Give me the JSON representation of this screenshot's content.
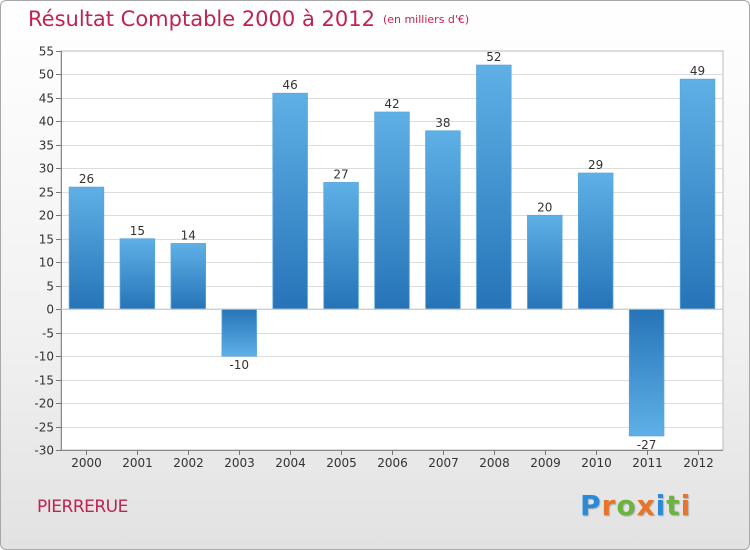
{
  "title": "Résultat Comptable 2000 à 2012",
  "subtitle": "(en milliers d'€)",
  "commune": "PIERRERUE",
  "logo": {
    "letters": [
      "P",
      "r",
      "o",
      "x",
      "i",
      "t",
      "i"
    ],
    "colors": [
      "#2b8ad6",
      "#e8742a",
      "#6cb33f",
      "#e8742a",
      "#2b8ad6",
      "#6cb33f",
      "#e8742a"
    ]
  },
  "colors": {
    "bar_top": "#5fb0e6",
    "bar_bottom": "#2674b8",
    "title": "#c0234f"
  },
  "chart_data": {
    "type": "bar",
    "title": "Résultat Comptable 2000 à 2012",
    "subtitle": "(en milliers d'€)",
    "xlabel": "",
    "ylabel": "",
    "categories": [
      "2000",
      "2001",
      "2002",
      "2003",
      "2004",
      "2005",
      "2006",
      "2007",
      "2008",
      "2009",
      "2010",
      "2011",
      "2012"
    ],
    "values": [
      26,
      15,
      14,
      -10,
      46,
      27,
      42,
      38,
      52,
      20,
      29,
      -27,
      49
    ],
    "labels": [
      "26",
      "15",
      "14",
      "-10",
      "46",
      "27",
      "42",
      "38",
      "52",
      "20",
      "29",
      "-27",
      "49"
    ],
    "ylim": [
      -30,
      55
    ],
    "yticks": [
      -30,
      -25,
      -20,
      -15,
      -10,
      -5,
      0,
      5,
      10,
      15,
      20,
      25,
      30,
      35,
      40,
      45,
      50,
      55
    ],
    "grid": true,
    "legend": "none"
  }
}
